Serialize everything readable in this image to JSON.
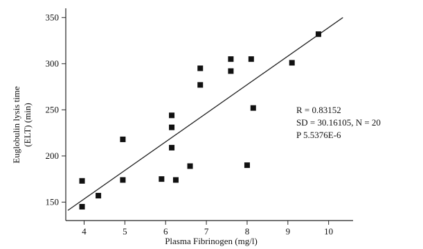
{
  "chart_data": {
    "type": "scatter",
    "xlabel": "Plasma Fibrinogen (mg/l)",
    "ylabel_lines": [
      "Euglobulin lysis time",
      "(ELT) (min)"
    ],
    "xlim": [
      3.55,
      10.6
    ],
    "ylim": [
      130,
      360
    ],
    "x_ticks": [
      4,
      5,
      6,
      7,
      8,
      9,
      10
    ],
    "y_ticks": [
      150,
      200,
      250,
      300,
      350
    ],
    "points": [
      {
        "x": 3.95,
        "y": 173
      },
      {
        "x": 3.95,
        "y": 145
      },
      {
        "x": 4.35,
        "y": 157
      },
      {
        "x": 4.95,
        "y": 218
      },
      {
        "x": 4.95,
        "y": 174
      },
      {
        "x": 5.9,
        "y": 175
      },
      {
        "x": 6.15,
        "y": 244
      },
      {
        "x": 6.15,
        "y": 231
      },
      {
        "x": 6.15,
        "y": 209
      },
      {
        "x": 6.25,
        "y": 174
      },
      {
        "x": 6.6,
        "y": 189
      },
      {
        "x": 6.85,
        "y": 295
      },
      {
        "x": 6.85,
        "y": 277
      },
      {
        "x": 7.6,
        "y": 305
      },
      {
        "x": 7.6,
        "y": 292
      },
      {
        "x": 8.0,
        "y": 190
      },
      {
        "x": 8.1,
        "y": 305
      },
      {
        "x": 8.15,
        "y": 252
      },
      {
        "x": 9.1,
        "y": 301
      },
      {
        "x": 9.75,
        "y": 332
      }
    ],
    "fit_line": {
      "x1": 3.6,
      "y1": 141,
      "x2": 10.35,
      "y2": 350
    },
    "stats": [
      "R = 0.83152",
      "SD = 30.16105, N = 20",
      "P    5.5376E-6"
    ],
    "grid": false,
    "legend": "none"
  }
}
